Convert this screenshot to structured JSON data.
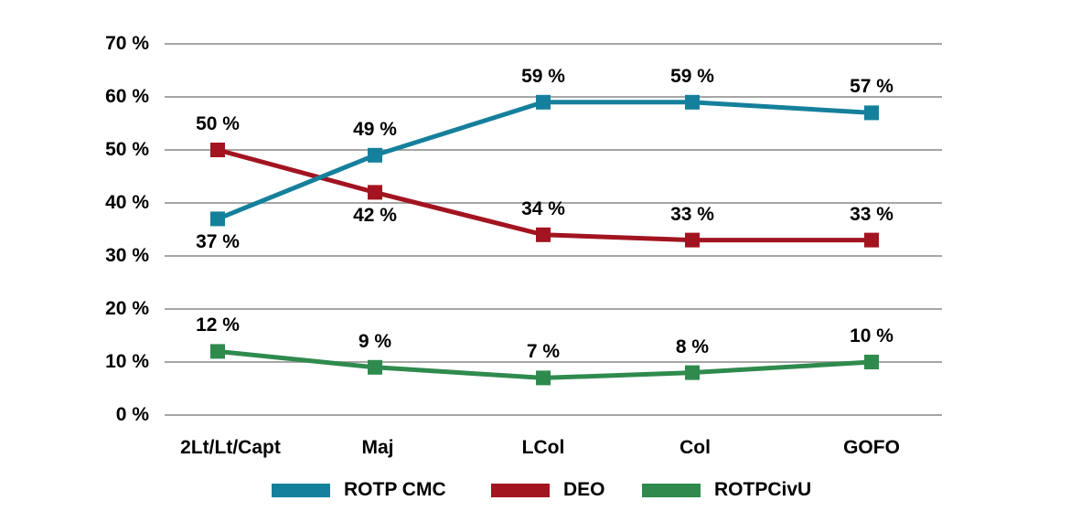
{
  "chart_data": {
    "type": "line",
    "title": "",
    "categories": [
      "2Lt/Lt/Capt",
      "Maj",
      "LCol",
      "Col",
      "GOFO"
    ],
    "series": [
      {
        "name": "ROTP CMC",
        "color": "#15809C",
        "values": [
          37,
          49,
          59,
          59,
          57
        ],
        "data_labels": [
          "37 %",
          "49 %",
          "59 %",
          "59 %",
          "57 %"
        ],
        "label_placement": [
          "below",
          "above",
          "above",
          "above",
          "above"
        ],
        "draw_order": 2
      },
      {
        "name": "DEO",
        "color": "#A21420",
        "values": [
          50,
          42,
          34,
          33,
          33
        ],
        "data_labels": [
          "50 %",
          "42 %",
          "34 %",
          "33 %",
          "33 %"
        ],
        "label_placement": [
          "above",
          "below",
          "above",
          "above",
          "above"
        ],
        "draw_order": 0
      },
      {
        "name": "ROTPCivU",
        "color": "#2F8A4E",
        "values": [
          12,
          9,
          7,
          8,
          10
        ],
        "data_labels": [
          "12 %",
          "9 %",
          "7 %",
          "8 %",
          "10 %"
        ],
        "label_placement": [
          "above",
          "above",
          "above",
          "above",
          "above"
        ],
        "draw_order": 1
      }
    ],
    "y_axis": {
      "min": 0,
      "max": 70,
      "step": 10,
      "ticks": [
        70,
        60,
        50,
        40,
        30,
        20,
        10,
        0
      ],
      "tick_suffix": " %"
    },
    "data_label_suffix": " %",
    "xlabel": "",
    "ylabel": "",
    "grid": "horizontal",
    "marker": "square",
    "legend_position": "bottom",
    "legend": [
      "ROTP CMC",
      "DEO",
      "ROTPCivU"
    ],
    "colors": {
      "gridline": "#999999",
      "text": "#000000",
      "background": "#FFFFFF"
    }
  }
}
